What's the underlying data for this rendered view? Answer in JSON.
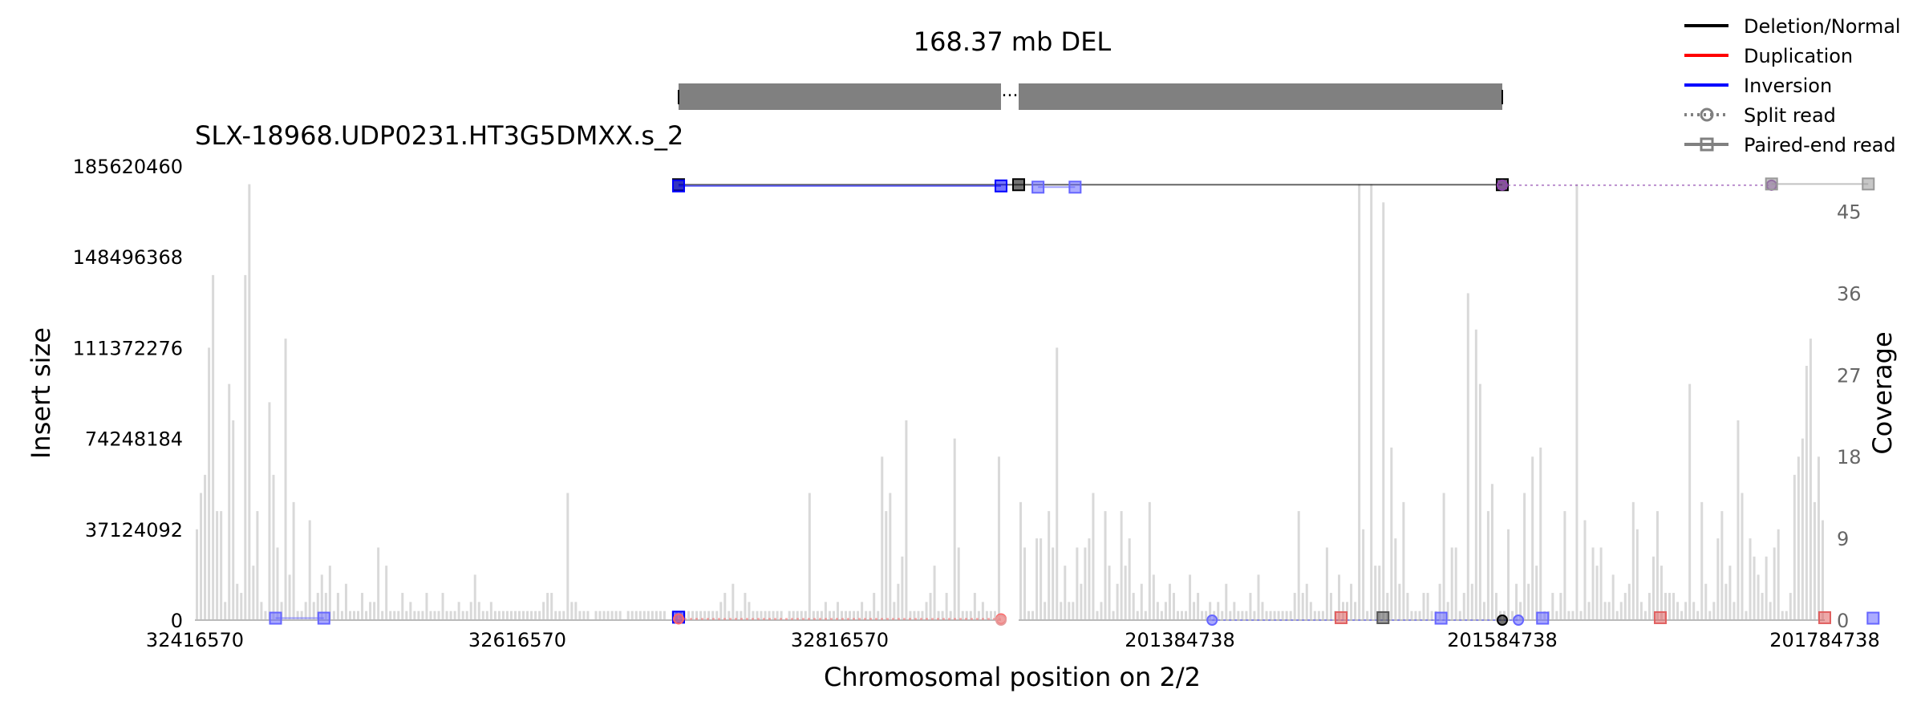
{
  "chart_data": {
    "type": "line",
    "title": "168.37 mb DEL",
    "subtitle": "SLX-18968.UDP0231.HT3G5DMXX.s_2",
    "xlabel": "Chromosomal position on 2/2",
    "ylabel": "Insert size",
    "ylabel_right": "Coverage",
    "yticks": [
      "0",
      "37124092",
      "74248184",
      "111372276",
      "148496368",
      "185620460"
    ],
    "ylim": [
      0,
      185620460
    ],
    "yticks_right": [
      "0",
      "9",
      "18",
      "27",
      "36",
      "45"
    ],
    "ylim_right": [
      0,
      50
    ],
    "legend_position": "top-right",
    "legend": [
      {
        "label": "Deletion/Normal",
        "color": "#000000",
        "style": "solid",
        "marker": "none"
      },
      {
        "label": "Duplication",
        "color": "#ff0000",
        "style": "solid",
        "marker": "none"
      },
      {
        "label": "Inversion",
        "color": "#0000ff",
        "style": "solid",
        "marker": "none"
      },
      {
        "label": "Split read",
        "color": "#808080",
        "style": "dotted",
        "marker": "circle"
      },
      {
        "label": "Paired-end read",
        "color": "#808080",
        "style": "solid",
        "marker": "square"
      }
    ],
    "segments": [
      {
        "start": 32416570,
        "end": 32916570,
        "ticks": [
          "32416570",
          "32616570",
          "32816570"
        ],
        "tick_values": [
          32416570,
          32616570,
          32816570
        ]
      },
      {
        "start": 201284738,
        "end": 201784738,
        "ticks": [
          "201384738",
          "201584738",
          "201784738"
        ],
        "tick_values": [
          201384738,
          201584738,
          201784738
        ]
      }
    ],
    "gene_bar": {
      "color": "#808080",
      "separator": "..."
    },
    "coverage": {
      "color": "#d9d9d9",
      "bin_size": 2500,
      "segments": [
        [
          10,
          14,
          16,
          30,
          38,
          12,
          12,
          2,
          26,
          22,
          4,
          3,
          38,
          48,
          6,
          12,
          2,
          1,
          24,
          16,
          8,
          2,
          31,
          5,
          13,
          1,
          1,
          2,
          11,
          2,
          3,
          5,
          3,
          6,
          1,
          3,
          1,
          4,
          1,
          1,
          1,
          3,
          1,
          2,
          2,
          8,
          1,
          6,
          1,
          1,
          1,
          3,
          1,
          2,
          1,
          1,
          1,
          3,
          1,
          1,
          1,
          3,
          1,
          1,
          1,
          2,
          1,
          1,
          2,
          5,
          2,
          1,
          1,
          2,
          1,
          1,
          1,
          1,
          1,
          1,
          1,
          1,
          1,
          1,
          1,
          1,
          2,
          3,
          3,
          1,
          1,
          1,
          14,
          2,
          2,
          1,
          1,
          1,
          0,
          1,
          1,
          1,
          1,
          1,
          1,
          1,
          0,
          1,
          1,
          1,
          1,
          1,
          1,
          1,
          1,
          1,
          1,
          0,
          1,
          1,
          1,
          1,
          1,
          1,
          1,
          1,
          1,
          1,
          1,
          1,
          2,
          3,
          1,
          4,
          1,
          1,
          3,
          2,
          1,
          1,
          1,
          1,
          1,
          1,
          1,
          1,
          0,
          1,
          1,
          1,
          1,
          1,
          14,
          1,
          1,
          1,
          2,
          1,
          1,
          2,
          1,
          1,
          1,
          1,
          1,
          2,
          1,
          1,
          3,
          1,
          18,
          12,
          14,
          2,
          4,
          7,
          22,
          1,
          1,
          1,
          1,
          2,
          3,
          6,
          1,
          1,
          3,
          1,
          20,
          8,
          1,
          1,
          1,
          3,
          1,
          2,
          1,
          1,
          1,
          18
        ],
        [
          13,
          8,
          1,
          1,
          9,
          9,
          2,
          12,
          8,
          30,
          2,
          6,
          2,
          2,
          8,
          4,
          8,
          9,
          14,
          1,
          2,
          12,
          6,
          1,
          4,
          12,
          6,
          9,
          3,
          1,
          4,
          1,
          13,
          5,
          2,
          1,
          2,
          4,
          3,
          1,
          1,
          1,
          5,
          2,
          3,
          1,
          1,
          2,
          1,
          2,
          1,
          4,
          1,
          2,
          1,
          1,
          1,
          3,
          1,
          5,
          2,
          1,
          1,
          1,
          1,
          1,
          1,
          1,
          3,
          12,
          3,
          4,
          2,
          1,
          1,
          1,
          8,
          3,
          1,
          5,
          2,
          2,
          4,
          2,
          48,
          10,
          1,
          48,
          6,
          6,
          46,
          3,
          19,
          9,
          4,
          13,
          3,
          1,
          1,
          1,
          3,
          3,
          1,
          1,
          4,
          14,
          2,
          8,
          8,
          1,
          3,
          36,
          4,
          32,
          26,
          2,
          12,
          15,
          3,
          1,
          1,
          10,
          1,
          4,
          2,
          14,
          4,
          18,
          6,
          19,
          1,
          1,
          3,
          1,
          3,
          12,
          1,
          1,
          48,
          1,
          11,
          2,
          8,
          6,
          8,
          2,
          2,
          5,
          1,
          2,
          3,
          4,
          13,
          10,
          2,
          1,
          3,
          7,
          12,
          6,
          3,
          3,
          3,
          2,
          1,
          2,
          26,
          2,
          1,
          13,
          4,
          1,
          2,
          9,
          12,
          4,
          6,
          2,
          22,
          14,
          1,
          9,
          7,
          5,
          3,
          7,
          2,
          8,
          10,
          1,
          1,
          3,
          16,
          18,
          20,
          28,
          31,
          13,
          18,
          11,
          48,
          13,
          46,
          30,
          42,
          8
        ]
      ]
    },
    "tracks": [
      {
        "kind": "paired-end",
        "color": "#000000",
        "y": 178000000,
        "points": [
          {
            "pos": 32716570,
            "seg": 0
          },
          {
            "pos": 201284738,
            "seg": 1
          },
          {
            "pos": 201584738,
            "seg": 1
          }
        ]
      },
      {
        "kind": "paired-end",
        "color": "#0000ff",
        "y": 177500000,
        "points": [
          {
            "pos": 32716570,
            "seg": 0
          },
          {
            "pos": 32916570,
            "seg": 0
          }
        ]
      },
      {
        "kind": "paired-end",
        "color": "#6666ff",
        "y": 177000000,
        "points": [
          {
            "pos": 201296738,
            "seg": 1
          },
          {
            "pos": 201319738,
            "seg": 1
          }
        ]
      },
      {
        "kind": "split",
        "color": "#8e44ad",
        "y": 177800000,
        "points": [
          {
            "pos": 201584738,
            "seg": 1
          },
          {
            "pos": 201751738,
            "seg": 1
          }
        ]
      },
      {
        "kind": "paired-end",
        "color": "#999999",
        "y": 178300000,
        "points": [
          {
            "pos": 201751738,
            "seg": 1
          },
          {
            "pos": 201811738,
            "seg": 1
          }
        ]
      },
      {
        "kind": "paired-end",
        "color": "#6666ff",
        "y": 800000,
        "points": [
          {
            "pos": 32466570,
            "seg": 0
          },
          {
            "pos": 32496570,
            "seg": 0
          }
        ]
      },
      {
        "kind": "paired-end",
        "color": "#0000ff",
        "y": 1200000,
        "points": [
          {
            "pos": 32716570,
            "seg": 0
          }
        ]
      },
      {
        "kind": "split",
        "color": "#ff6666",
        "y": 500000,
        "points": [
          {
            "pos": 32716570,
            "seg": 0
          },
          {
            "pos": 32916570,
            "seg": 0
          }
        ]
      },
      {
        "kind": "split",
        "color": "#e59a9a",
        "y": 0,
        "points": [
          {
            "pos": 32916570,
            "seg": 0
          }
        ]
      },
      {
        "kind": "split",
        "color": "#6666ff",
        "y": 0,
        "points": [
          {
            "pos": 201404738,
            "seg": 1
          },
          {
            "pos": 201594738,
            "seg": 1
          }
        ]
      },
      {
        "kind": "paired-end",
        "color": "#e06060",
        "y": 1000000,
        "points": [
          {
            "pos": 201484738,
            "seg": 1
          }
        ]
      },
      {
        "kind": "paired-end",
        "color": "#555555",
        "y": 1000000,
        "points": [
          {
            "pos": 201510738,
            "seg": 1
          }
        ]
      },
      {
        "kind": "paired-end",
        "color": "#6666ff",
        "y": 800000,
        "points": [
          {
            "pos": 201546738,
            "seg": 1
          }
        ]
      },
      {
        "kind": "split",
        "color": "#000000",
        "y": 0,
        "points": [
          {
            "pos": 201584738,
            "seg": 1
          }
        ]
      },
      {
        "kind": "paired-end",
        "color": "#6666ff",
        "y": 800000,
        "points": [
          {
            "pos": 201609738,
            "seg": 1
          }
        ]
      },
      {
        "kind": "paired-end",
        "color": "#e06060",
        "y": 1000000,
        "points": [
          {
            "pos": 201682738,
            "seg": 1
          }
        ]
      },
      {
        "kind": "paired-end",
        "color": "#e06060",
        "y": 1000000,
        "points": [
          {
            "pos": 201784738,
            "seg": 1
          }
        ]
      },
      {
        "kind": "paired-end",
        "color": "#6666ff",
        "y": 800000,
        "points": [
          {
            "pos": 201814738,
            "seg": 1
          }
        ]
      }
    ]
  }
}
